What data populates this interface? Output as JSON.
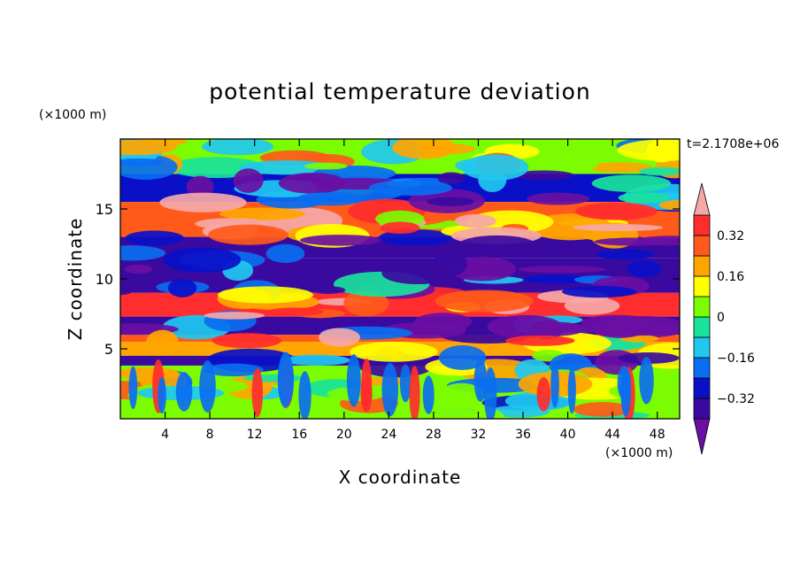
{
  "chart_data": {
    "type": "heatmap",
    "title": "potential temperature deviation",
    "xlabel": "X coordinate",
    "ylabel": "Z coordinate",
    "x_unit": "(×1000 m)",
    "y_unit": "(×1000 m)",
    "time_label": "t=2.1708e+06",
    "xlim": [
      0,
      50
    ],
    "ylim": [
      0,
      20
    ],
    "x_ticks": [
      4,
      8,
      12,
      16,
      20,
      24,
      28,
      32,
      36,
      40,
      44,
      48
    ],
    "y_ticks": [
      5,
      10,
      15
    ],
    "colorbar": {
      "levels": [
        -0.4,
        -0.32,
        -0.24,
        -0.16,
        -0.08,
        0,
        0.08,
        0.16,
        0.24,
        0.32,
        0.4
      ],
      "tick_labels": [
        "0.32",
        "0.16",
        "0",
        "−0.16",
        "−0.32"
      ],
      "tick_values": [
        0.32,
        0.16,
        0,
        -0.16,
        -0.32
      ],
      "colors": [
        "#6a0fa3",
        "#3a0aa0",
        "#0a10c8",
        "#0a6ef0",
        "#20c8f0",
        "#19e29b",
        "#7cfc00",
        "#ffff00",
        "#ffa500",
        "#ff5a1a",
        "#ff2d2d",
        "#f5a8a8"
      ],
      "extend": "both"
    },
    "bands": [
      {
        "z_min": 17.5,
        "z_max": 20.0,
        "value": 0.05
      },
      {
        "z_min": 15.5,
        "z_max": 17.5,
        "value": -0.25
      },
      {
        "z_min": 13.0,
        "z_max": 15.5,
        "value": 0.3
      },
      {
        "z_min": 11.5,
        "z_max": 13.0,
        "value": -0.38
      },
      {
        "z_min": 9.0,
        "z_max": 11.5,
        "value": -0.33
      },
      {
        "z_min": 7.3,
        "z_max": 9.0,
        "value": 0.38
      },
      {
        "z_min": 6.0,
        "z_max": 7.3,
        "value": -0.4
      },
      {
        "z_min": 5.5,
        "z_max": 6.0,
        "value": 0.28
      },
      {
        "z_min": 4.5,
        "z_max": 5.5,
        "value": 0.22
      },
      {
        "z_min": 3.8,
        "z_max": 4.5,
        "value": -0.4
      },
      {
        "z_min": 0.0,
        "z_max": 3.8,
        "value": 0.02
      }
    ]
  }
}
